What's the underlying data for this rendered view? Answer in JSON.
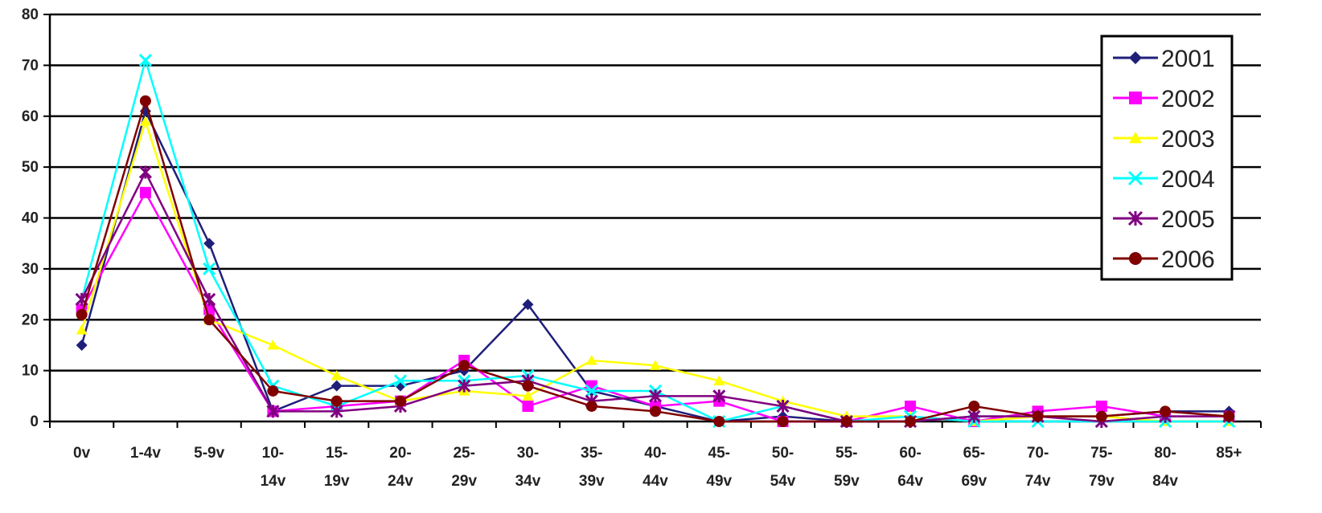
{
  "chart_data": {
    "type": "line",
    "title": "",
    "xlabel": "",
    "ylabel": "",
    "ylim": [
      0,
      80
    ],
    "yticks": [
      0,
      10,
      20,
      30,
      40,
      50,
      60,
      70,
      80
    ],
    "grid": true,
    "legend_position": "top-right",
    "categories": [
      [
        "0v"
      ],
      [
        "1-4v"
      ],
      [
        "5-9v"
      ],
      [
        "10-",
        "14v"
      ],
      [
        "15-",
        "19v"
      ],
      [
        "20-",
        "24v"
      ],
      [
        "25-",
        "29v"
      ],
      [
        "30-",
        "34v"
      ],
      [
        "35-",
        "39v"
      ],
      [
        "40-",
        "44v"
      ],
      [
        "45-",
        "49v"
      ],
      [
        "50-",
        "54v"
      ],
      [
        "55-",
        "59v"
      ],
      [
        "60-",
        "64v"
      ],
      [
        "65-",
        "69v"
      ],
      [
        "70-",
        "74v"
      ],
      [
        "75-",
        "79v"
      ],
      [
        "80-",
        "84v"
      ],
      [
        "85+"
      ]
    ],
    "series": [
      {
        "name": "2001",
        "color": "#1f1f7a",
        "marker": "diamond",
        "values": [
          15,
          61,
          35,
          2,
          7,
          7,
          10,
          23,
          6,
          3,
          0,
          1,
          0,
          0,
          1,
          1,
          1,
          2,
          2
        ]
      },
      {
        "name": "2002",
        "color": "#ff00ff",
        "marker": "square",
        "values": [
          22,
          45,
          22,
          2,
          3,
          4,
          12,
          3,
          7,
          3,
          4,
          0,
          0,
          3,
          0,
          2,
          3,
          1,
          1
        ]
      },
      {
        "name": "2003",
        "color": "#ffff00",
        "marker": "triangle",
        "values": [
          18,
          59,
          20,
          15,
          9,
          4,
          6,
          5,
          12,
          11,
          8,
          4,
          1,
          1,
          0,
          1,
          1,
          0,
          0
        ]
      },
      {
        "name": "2004",
        "color": "#00ffff",
        "marker": "x",
        "values": [
          24,
          71,
          30,
          7,
          3,
          8,
          8,
          9,
          6,
          6,
          0,
          3,
          0,
          1,
          0,
          0,
          0,
          0,
          0
        ]
      },
      {
        "name": "2005",
        "color": "#800080",
        "marker": "star",
        "values": [
          24,
          49,
          24,
          2,
          2,
          3,
          7,
          8,
          4,
          5,
          5,
          3,
          0,
          0,
          1,
          1,
          0,
          1,
          1
        ]
      },
      {
        "name": "2006",
        "color": "#800000",
        "marker": "circle",
        "values": [
          21,
          63,
          20,
          6,
          4,
          4,
          11,
          7,
          3,
          2,
          0,
          0,
          0,
          0,
          3,
          1,
          1,
          2,
          1
        ]
      }
    ]
  }
}
